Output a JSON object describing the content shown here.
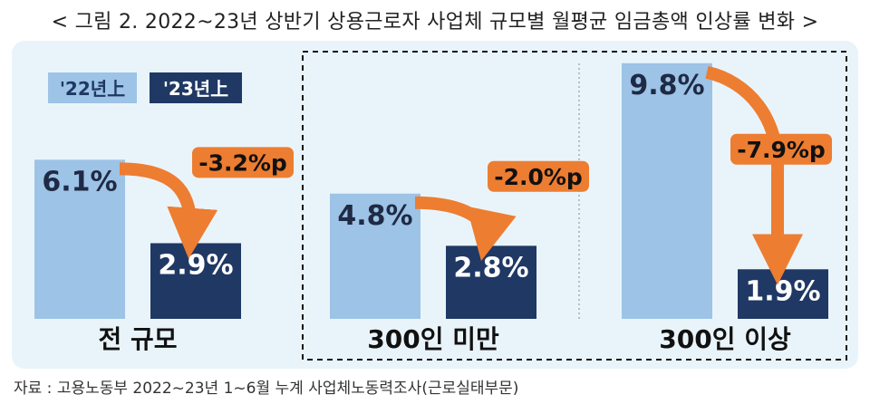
{
  "title": "< 그림 2. 2022~23년 상반기 상용근로자 사업체 규모별 월평균 임금총액 인상률 변화 >",
  "source": "자료 : 고용노동부 2022~23년 1~6월 누계 사업체노동력조사(근로실태부문)",
  "colors": {
    "panel_bg": "#e9f4fa",
    "y2022": "#9dc3e6",
    "y2023": "#203864",
    "arrow": "#ed7d31"
  },
  "chart_data": {
    "type": "bar",
    "categories": [
      "전 규모",
      "300인 미만",
      "300인 이상"
    ],
    "series": [
      {
        "name": "'22년上",
        "values": [
          6.1,
          4.8,
          9.8
        ],
        "labels": [
          "6.1%",
          "4.8%",
          "9.8%"
        ]
      },
      {
        "name": "'23년上",
        "values": [
          2.9,
          2.8,
          1.9
        ],
        "labels": [
          "2.9%",
          "2.8%",
          "1.9%"
        ]
      }
    ],
    "changes": [
      "-3.2%p",
      "-2.0%p",
      "-7.9%p"
    ],
    "legend_position": "top-left",
    "grid": false
  }
}
